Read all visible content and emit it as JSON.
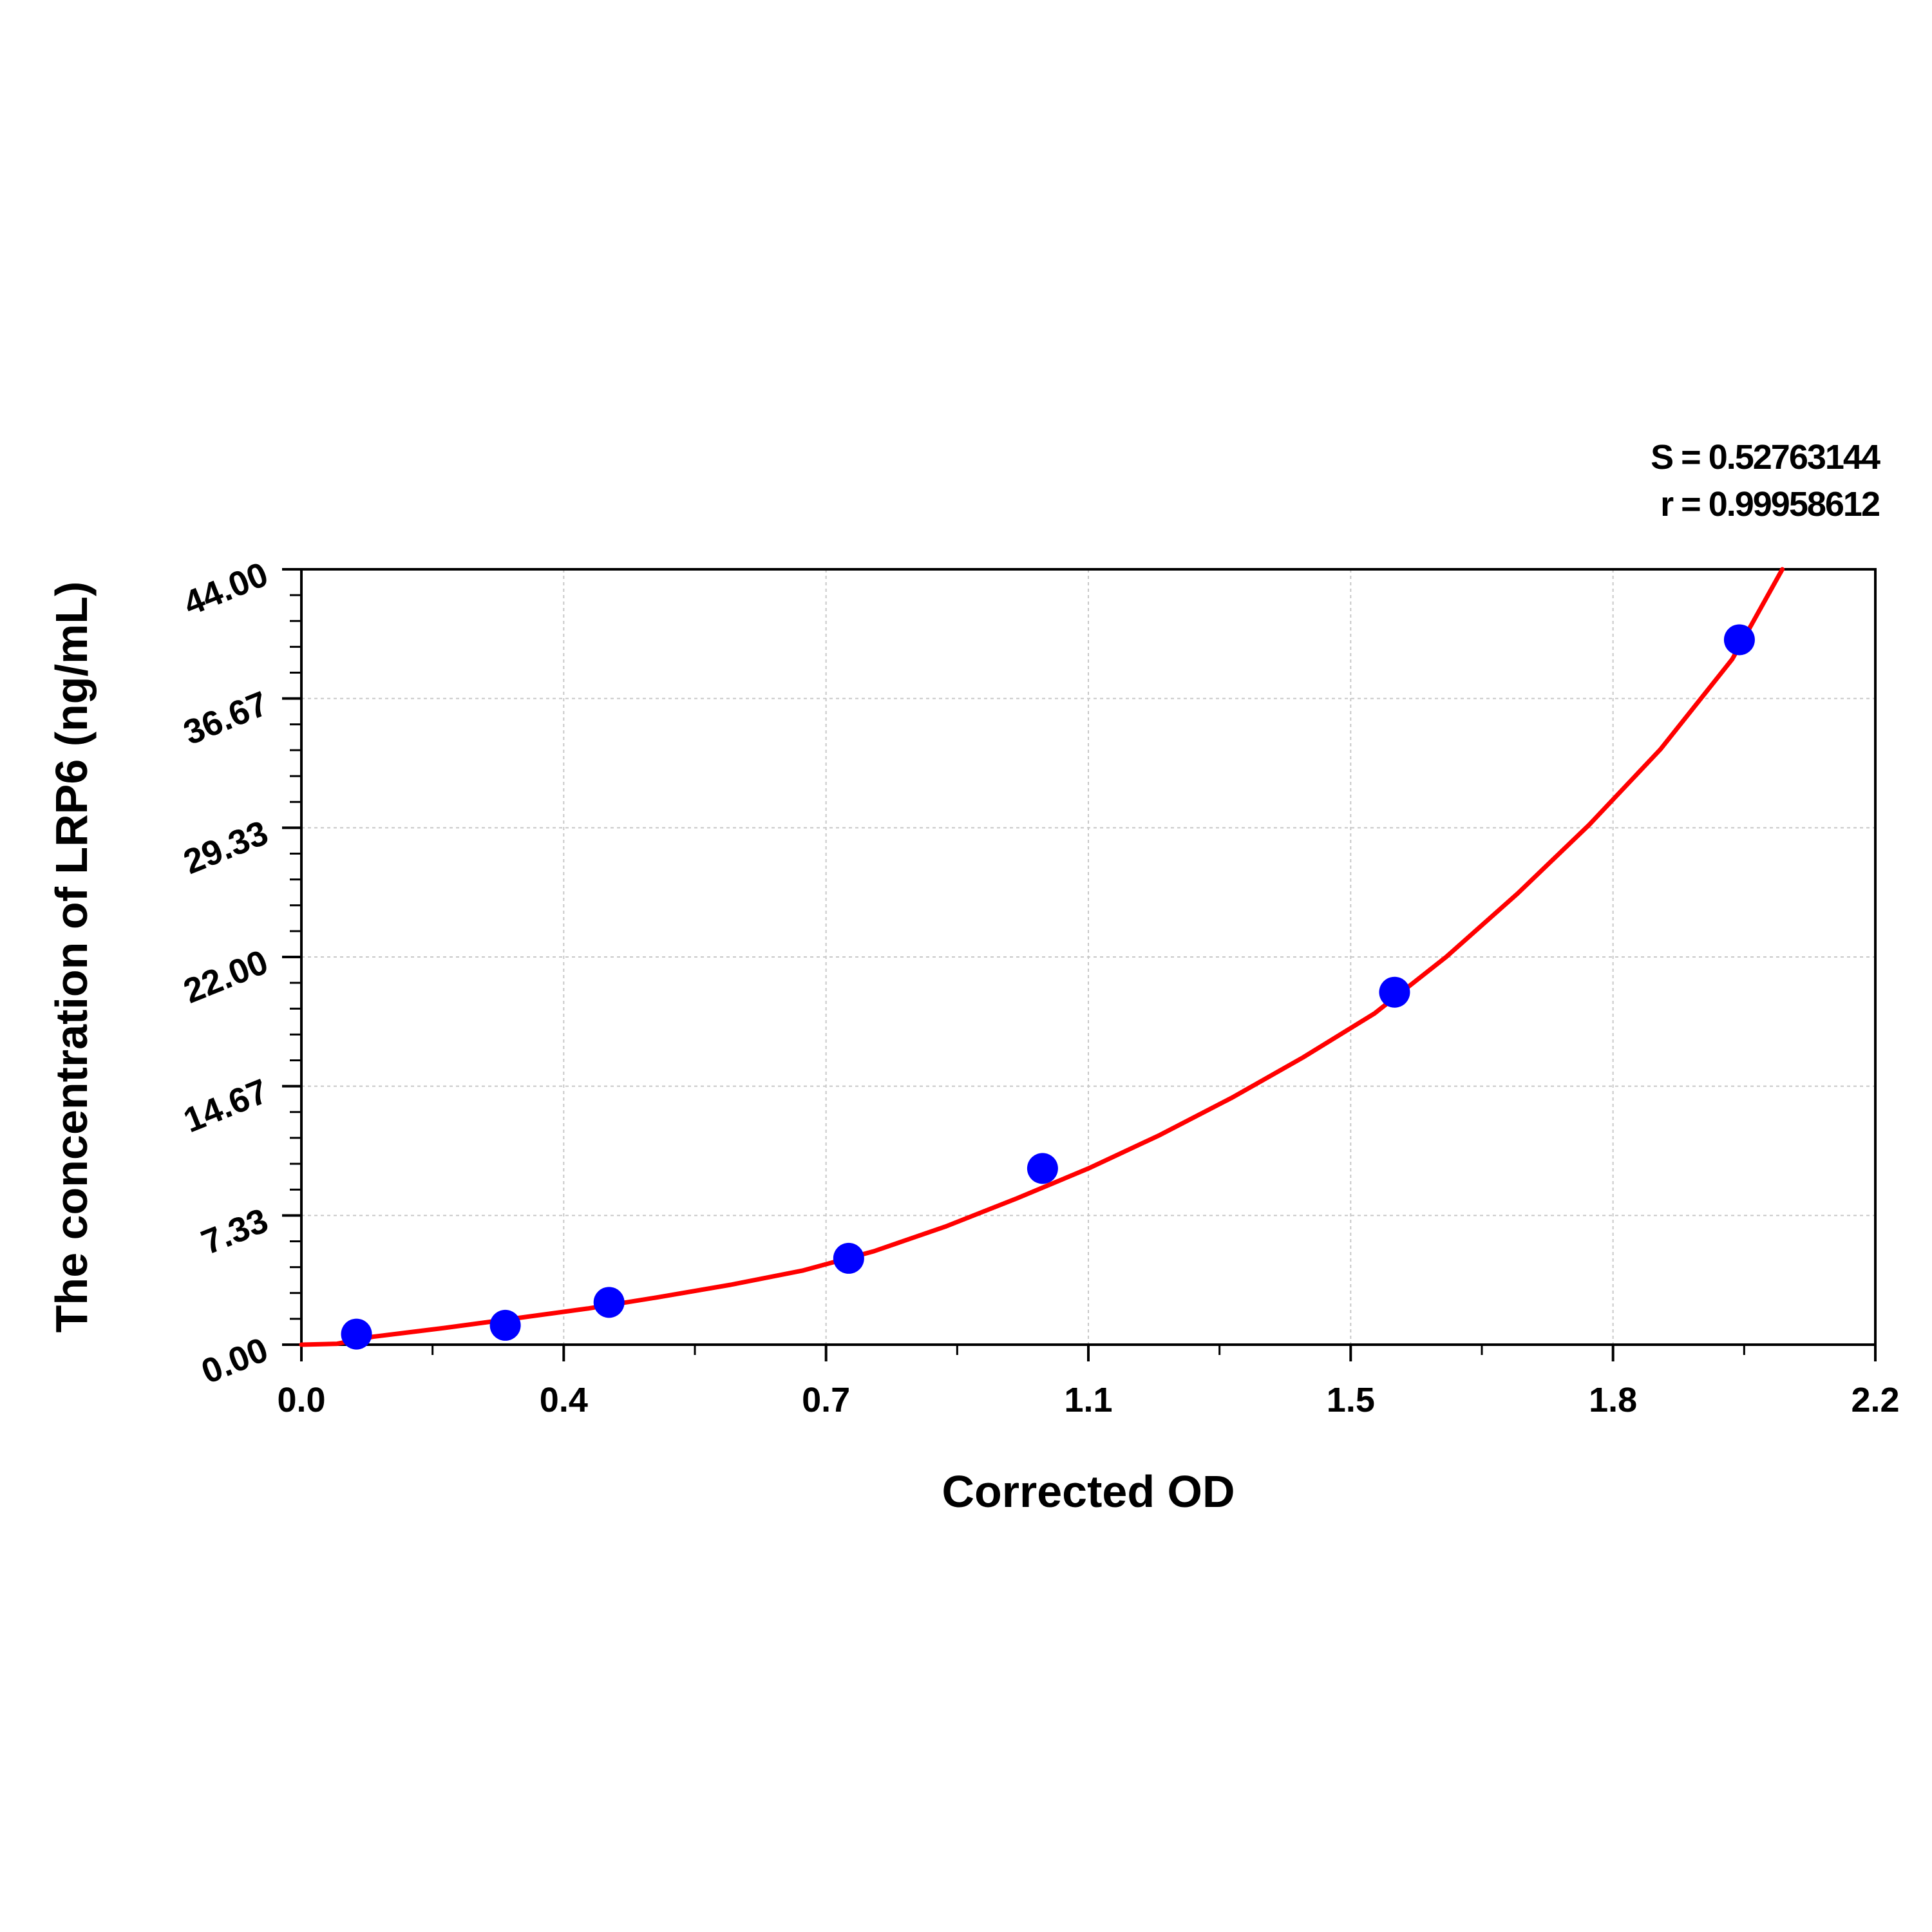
{
  "chart_data": {
    "type": "scatter",
    "title": "",
    "xlabel": "Corrected OD",
    "ylabel": "The concentration of LRP6 (ng/mL)",
    "xlim": [
      0.0,
      2.2
    ],
    "ylim": [
      0.0,
      44.0
    ],
    "x_tick_labels": [
      "0.0",
      "0.4",
      "0.7",
      "1.1",
      "1.5",
      "1.8",
      "2.2"
    ],
    "y_tick_labels": [
      "0.00",
      "7.33",
      "14.67",
      "22.00",
      "29.33",
      "36.67",
      "44.00"
    ],
    "grid": true,
    "stats": {
      "s_text": "S = 0.52763144",
      "r_text": "r = 0.99958612"
    },
    "series": [
      {
        "type": "scatter",
        "x": [
          0.077,
          0.285,
          0.43,
          0.765,
          1.036,
          1.528,
          2.01
        ],
        "y": [
          0.6,
          1.1,
          2.4,
          4.9,
          10.0,
          20.0,
          40.0
        ]
      },
      {
        "type": "line",
        "x": [
          0.0,
          0.05,
          0.1,
          0.2,
          0.3,
          0.4,
          0.5,
          0.6,
          0.7,
          0.8,
          0.9,
          1.0,
          1.1,
          1.2,
          1.3,
          1.4,
          1.5,
          1.6,
          1.7,
          1.8,
          1.9,
          2.0,
          2.07
        ],
        "y": [
          0.0,
          0.05,
          0.45,
          0.95,
          1.5,
          2.05,
          2.7,
          3.4,
          4.2,
          5.3,
          6.7,
          8.3,
          10.0,
          11.9,
          14.0,
          16.3,
          18.8,
          22.0,
          25.6,
          29.5,
          33.8,
          38.9,
          44.0
        ]
      }
    ],
    "colors": {
      "points": "#0000ff",
      "curve": "#ff0000",
      "grid": "#c8c8c8",
      "axes": "#000000"
    }
  }
}
